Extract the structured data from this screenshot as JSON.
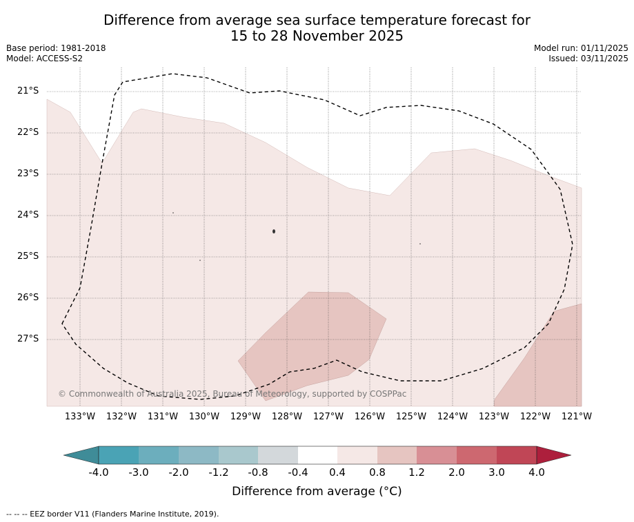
{
  "title": {
    "line1": "Difference from average sea surface temperature forecast for",
    "line2": "15 to 28 November 2025"
  },
  "meta_left": {
    "base_period": "Base period: 1981-2018",
    "model": "Model: ACCESS-S2"
  },
  "meta_right": {
    "model_run": "Model run: 01/11/2025",
    "issued": "Issued: 03/11/2025"
  },
  "map": {
    "lat_labels": [
      "21°S",
      "22°S",
      "23°S",
      "24°S",
      "25°S",
      "26°S",
      "27°S"
    ],
    "lon_labels": [
      "133°W",
      "132°W",
      "131°W",
      "130°W",
      "129°W",
      "128°W",
      "127°W",
      "126°W",
      "125°W",
      "124°W",
      "123°W",
      "122°W",
      "121°W"
    ],
    "copyright": "© Commonwealth of Australia 2025, Bureau of Meteorology, supported by COSPPac",
    "region_colors": {
      "anomaly_0_4_to_0_8": "#f5e8e6",
      "anomaly_0_8_to_1_2": "#e6c5c1"
    }
  },
  "colorbar": {
    "ticks": [
      "-4.0",
      "-3.0",
      "-2.0",
      "-1.2",
      "-0.8",
      "-0.4",
      "0.4",
      "0.8",
      "1.2",
      "2.0",
      "3.0",
      "4.0"
    ],
    "colors": [
      "#3f8c98",
      "#4aa3b5",
      "#6caebd",
      "#8db9c5",
      "#a9c8cd",
      "#d3d8db",
      "#ffffff",
      "#f5e8e6",
      "#e6c5c1",
      "#d88f95",
      "#cd6870",
      "#c04656",
      "#ad1f3c"
    ],
    "label": "Difference from average (°C)"
  },
  "footnote": "--  --  -- EEZ border V11 (Flanders Marine Institute, 2019)."
}
